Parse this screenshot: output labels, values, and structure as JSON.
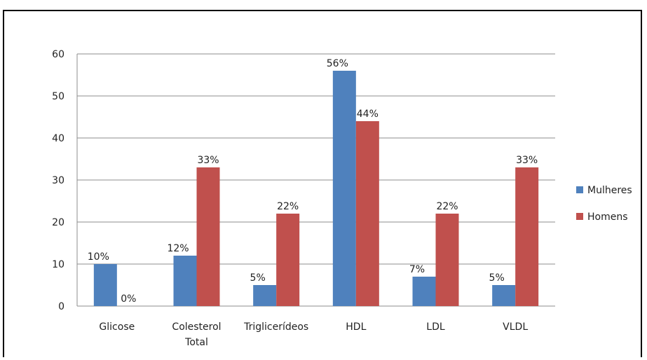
{
  "chart_data": {
    "type": "bar",
    "categories": [
      [
        "Glicose"
      ],
      [
        "Colesterol",
        "Total"
      ],
      [
        "Triglicerídeos"
      ],
      [
        "HDL"
      ],
      [
        "LDL"
      ],
      [
        "VLDL"
      ]
    ],
    "series": [
      {
        "name": "Mulheres",
        "color": "#4F81BD",
        "values": [
          10,
          12,
          5,
          56,
          7,
          5
        ],
        "labels": [
          "10%",
          "12%",
          "5%",
          "56%",
          "7%",
          "5%"
        ]
      },
      {
        "name": "Homens",
        "color": "#C0504D",
        "values": [
          0,
          33,
          22,
          44,
          22,
          33
        ],
        "labels": [
          "0%",
          "33%",
          "22%",
          "44%",
          "22%",
          "33%"
        ]
      }
    ],
    "ylim": [
      0,
      60
    ],
    "yticks": [
      "0",
      "10",
      "20",
      "30",
      "40",
      "50",
      "60"
    ],
    "grid": true,
    "legend": "right"
  }
}
